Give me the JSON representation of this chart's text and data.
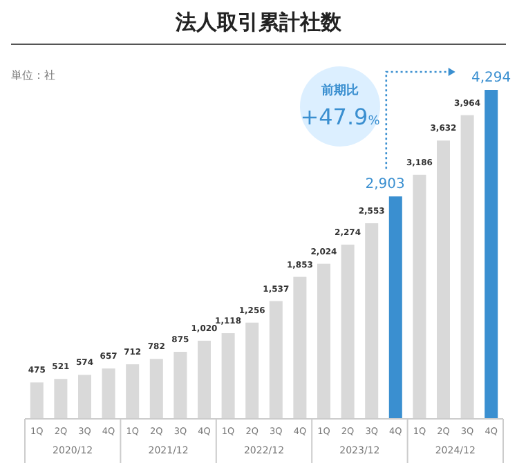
{
  "chart_data": {
    "type": "bar",
    "title": "法人取引累計社数",
    "categories": [
      "1Q",
      "2Q",
      "3Q",
      "4Q",
      "1Q",
      "2Q",
      "3Q",
      "4Q",
      "1Q",
      "2Q",
      "3Q",
      "4Q",
      "1Q",
      "2Q",
      "3Q",
      "4Q",
      "1Q",
      "2Q",
      "3Q",
      "4Q"
    ],
    "values": [
      475,
      521,
      574,
      657,
      712,
      782,
      875,
      1020,
      1118,
      1256,
      1537,
      1853,
      2024,
      2274,
      2553,
      2903,
      3186,
      3632,
      3964,
      4294
    ],
    "colors": [
      "#d9d9d9",
      "#d9d9d9",
      "#d9d9d9",
      "#d9d9d9",
      "#d9d9d9",
      "#d9d9d9",
      "#d9d9d9",
      "#d9d9d9",
      "#d9d9d9",
      "#d9d9d9",
      "#d9d9d9",
      "#d9d9d9",
      "#d9d9d9",
      "#d9d9d9",
      "#d9d9d9",
      "#3a8fd0",
      "#d9d9d9",
      "#d9d9d9",
      "#d9d9d9",
      "#3a8fd0"
    ],
    "value_labels": [
      "475",
      "521",
      "574",
      "657",
      "712",
      "782",
      "875",
      "1,020",
      "1,118",
      "1,256",
      "1,537",
      "1,853",
      "2,024",
      "2,274",
      "2,553",
      "2,903",
      "3,186",
      "3,632",
      "3,964",
      "4,294"
    ],
    "annotations": [
      "単位：社",
      "前期比",
      "+47.9%",
      "2020/12",
      "2021/12",
      "2022/12",
      "2023/12",
      "2024/12"
    ]
  }
}
